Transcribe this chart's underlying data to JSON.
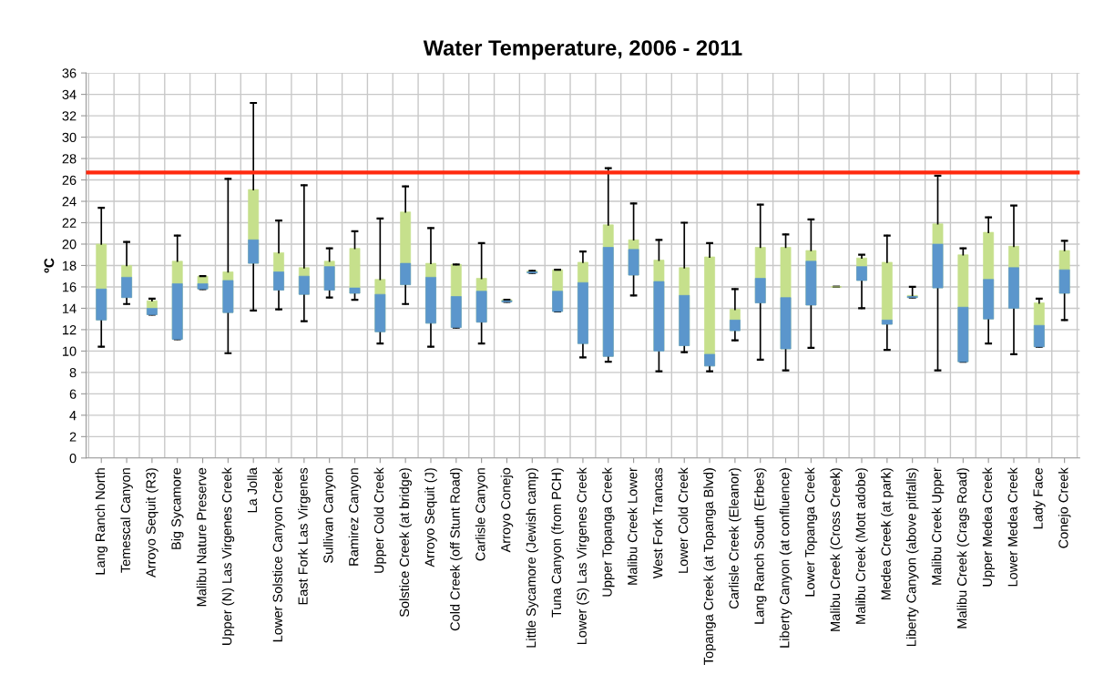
{
  "chart_data": {
    "type": "box",
    "title": "Water Temperature, 2006 - 2011",
    "ylabel": "ºC",
    "categories": [
      "Lang Ranch North",
      "Temescal Canyon",
      "Arroyo Sequit (R3)",
      "Big Sycamore",
      "Malibu Nature Preserve",
      "Upper (N) Las Virgenes Creek",
      "La Jolla",
      "Lower Solstice Canyon Creek",
      "East Fork Las Virgenes",
      "Sullivan Canyon",
      "Ramirez Canyon",
      "Upper Cold Creek",
      "Solstice Creek (at bridge)",
      "Arroyo Sequit (J)",
      "Cold Creek (off Stunt Road)",
      "Carlisle Canyon",
      "Arroyo Conejo",
      "Little Sycamore (Jewish camp)",
      "Tuna Canyon (from PCH)",
      "Lower (S) Las Virgenes Creek",
      "Upper Topanga Creek",
      "Malibu Creek Lower",
      "West Fork Trancas",
      "Lower Cold Creek",
      "Topanga Creek (at Topanga Blvd)",
      "Carlisle Creek (Eleanor)",
      "Lang Ranch South (Erbes)",
      "Liberty Canyon (at confluence)",
      "Lower Topanga Creek",
      "Malibu Creek (Cross Creek)",
      "Malibu Creek (Mott adobe)",
      "Medea Creek (at park)",
      "Liberty Canyon (above pitfalls)",
      "Malibu Creek Upper",
      "Malibu Creek (Crags Road)",
      "Upper Medea Creek",
      "Lower Medea Creek",
      "Lady Face",
      "Conejo Creek"
    ],
    "series": [
      {
        "color": "#c6e08c",
        "colors": [
          "#5b96cc",
          "#5b96cc",
          "#5b96cc",
          "#5b96cc",
          "#5b96cc",
          "#5b96cc",
          "#5b96cc",
          "#5b96cc",
          "#5b96cc",
          "#5b96cc",
          "#5b96cc",
          "#5b96cc",
          "#5b96cc",
          "#5b96cc",
          "#5b96cc",
          "#5b96cc",
          "#5b96cc",
          "#5b96cc",
          "#5b96cc",
          "#5b96cc",
          "#5b96cc",
          "#5b96cc",
          "#5b96cc",
          "#5b96cc",
          "#5b96cc",
          "#5b96cc",
          "#5b96cc",
          "#5b96cc",
          "#5b96cc",
          "#c6e08c",
          "#5b96cc",
          "#5b96cc",
          "#5b96cc",
          "#5b96cc",
          "#5b96cc",
          "#5b96cc",
          "#5b96cc",
          "#5b96cc",
          "#5b96cc"
        ],
        "boxes": [
          {
            "low": 10.4,
            "q1": 12.9,
            "median": 15.8,
            "q3": 20.0,
            "high": 23.4
          },
          {
            "low": 14.4,
            "q1": 15.0,
            "median": 16.9,
            "q3": 18.0,
            "high": 20.2
          },
          {
            "low": 13.4,
            "q1": 13.4,
            "median": 14.0,
            "q3": 14.7,
            "high": 14.9
          },
          {
            "low": 11.1,
            "q1": 11.1,
            "median": 16.3,
            "q3": 18.4,
            "high": 20.8
          },
          {
            "low": 15.8,
            "q1": 15.8,
            "median": 16.3,
            "q3": 17.0,
            "high": 17.0
          },
          {
            "low": 9.8,
            "q1": 13.6,
            "median": 16.6,
            "q3": 17.4,
            "high": 26.1
          },
          {
            "low": 13.8,
            "q1": 18.2,
            "median": 20.4,
            "q3": 25.1,
            "high": 33.2
          },
          {
            "low": 13.9,
            "q1": 15.7,
            "median": 17.4,
            "q3": 19.2,
            "high": 22.2
          },
          {
            "low": 12.8,
            "q1": 15.3,
            "median": 17.0,
            "q3": 17.8,
            "high": 25.5
          },
          {
            "low": 15.0,
            "q1": 15.7,
            "median": 17.9,
            "q3": 18.4,
            "high": 19.6
          },
          {
            "low": 14.8,
            "q1": 15.4,
            "median": 15.9,
            "q3": 19.6,
            "high": 21.2
          },
          {
            "low": 10.7,
            "q1": 11.8,
            "median": 15.3,
            "q3": 16.7,
            "high": 22.4
          },
          {
            "low": 14.4,
            "q1": 16.2,
            "median": 18.2,
            "q3": 23.0,
            "high": 25.4
          },
          {
            "low": 10.4,
            "q1": 12.6,
            "median": 16.9,
            "q3": 18.2,
            "high": 21.5
          },
          {
            "low": 12.2,
            "q1": 12.2,
            "median": 15.1,
            "q3": 18.1,
            "high": 18.1
          },
          {
            "low": 10.7,
            "q1": 12.7,
            "median": 15.6,
            "q3": 16.8,
            "high": 20.1
          },
          {
            "low": 14.6,
            "q1": 14.6,
            "median": 14.7,
            "q3": 14.8,
            "high": 14.8
          },
          {
            "low": 17.3,
            "q1": 17.3,
            "median": 17.4,
            "q3": 17.5,
            "high": 17.5
          },
          {
            "low": 13.7,
            "q1": 13.7,
            "median": 15.6,
            "q3": 17.6,
            "high": 17.6
          },
          {
            "low": 9.4,
            "q1": 10.7,
            "median": 16.4,
            "q3": 18.3,
            "high": 19.3
          },
          {
            "low": 9.0,
            "q1": 9.5,
            "median": 19.7,
            "q3": 21.8,
            "high": 27.1
          },
          {
            "low": 15.2,
            "q1": 17.1,
            "median": 19.5,
            "q3": 20.4,
            "high": 23.8
          },
          {
            "low": 8.1,
            "q1": 10.0,
            "median": 16.5,
            "q3": 18.5,
            "high": 20.4
          },
          {
            "low": 9.9,
            "q1": 10.5,
            "median": 15.2,
            "q3": 17.8,
            "high": 22.0
          },
          {
            "low": 8.1,
            "q1": 8.6,
            "median": 9.7,
            "q3": 18.8,
            "high": 20.1
          },
          {
            "low": 11.0,
            "q1": 11.9,
            "median": 12.9,
            "q3": 13.9,
            "high": 15.8
          },
          {
            "low": 9.2,
            "q1": 14.5,
            "median": 16.8,
            "q3": 19.7,
            "high": 23.7
          },
          {
            "low": 8.2,
            "q1": 10.2,
            "median": 15.0,
            "q3": 19.7,
            "high": 20.9
          },
          {
            "low": 10.3,
            "q1": 14.3,
            "median": 18.4,
            "q3": 19.4,
            "high": 22.3
          },
          {
            "low": 16.0,
            "q1": 16.0,
            "median": 16.0,
            "q3": 16.0,
            "high": 16.0
          },
          {
            "low": 14.0,
            "q1": 16.6,
            "median": 17.9,
            "q3": 18.7,
            "high": 19.0
          },
          {
            "low": 10.1,
            "q1": 12.5,
            "median": 12.9,
            "q3": 18.3,
            "high": 20.8
          },
          {
            "low": 15.0,
            "q1": 15.0,
            "median": 15.1,
            "q3": 15.2,
            "high": 16.0
          },
          {
            "low": 8.2,
            "q1": 15.9,
            "median": 20.0,
            "q3": 21.9,
            "high": 26.4
          },
          {
            "low": 9.0,
            "q1": 9.0,
            "median": 14.1,
            "q3": 19.0,
            "high": 19.6
          },
          {
            "low": 10.7,
            "q1": 13.0,
            "median": 16.7,
            "q3": 21.1,
            "high": 22.5
          },
          {
            "low": 9.7,
            "q1": 14.0,
            "median": 17.8,
            "q3": 19.8,
            "high": 23.6
          },
          {
            "low": 10.4,
            "q1": 10.4,
            "median": 12.4,
            "q3": 14.5,
            "high": 14.9
          },
          {
            "low": 12.9,
            "q1": 15.4,
            "median": 17.6,
            "q3": 19.4,
            "high": 20.3
          }
        ]
      }
    ],
    "ylim": [
      0,
      36
    ],
    "yticks": [
      0,
      2,
      4,
      6,
      8,
      10,
      12,
      14,
      16,
      18,
      20,
      22,
      24,
      26,
      28,
      30,
      32,
      34,
      36
    ],
    "ref_lines": [
      {
        "axis": "y",
        "value": 26.7,
        "label": null,
        "color": "#ff2a0f"
      }
    ],
    "grid": true
  }
}
